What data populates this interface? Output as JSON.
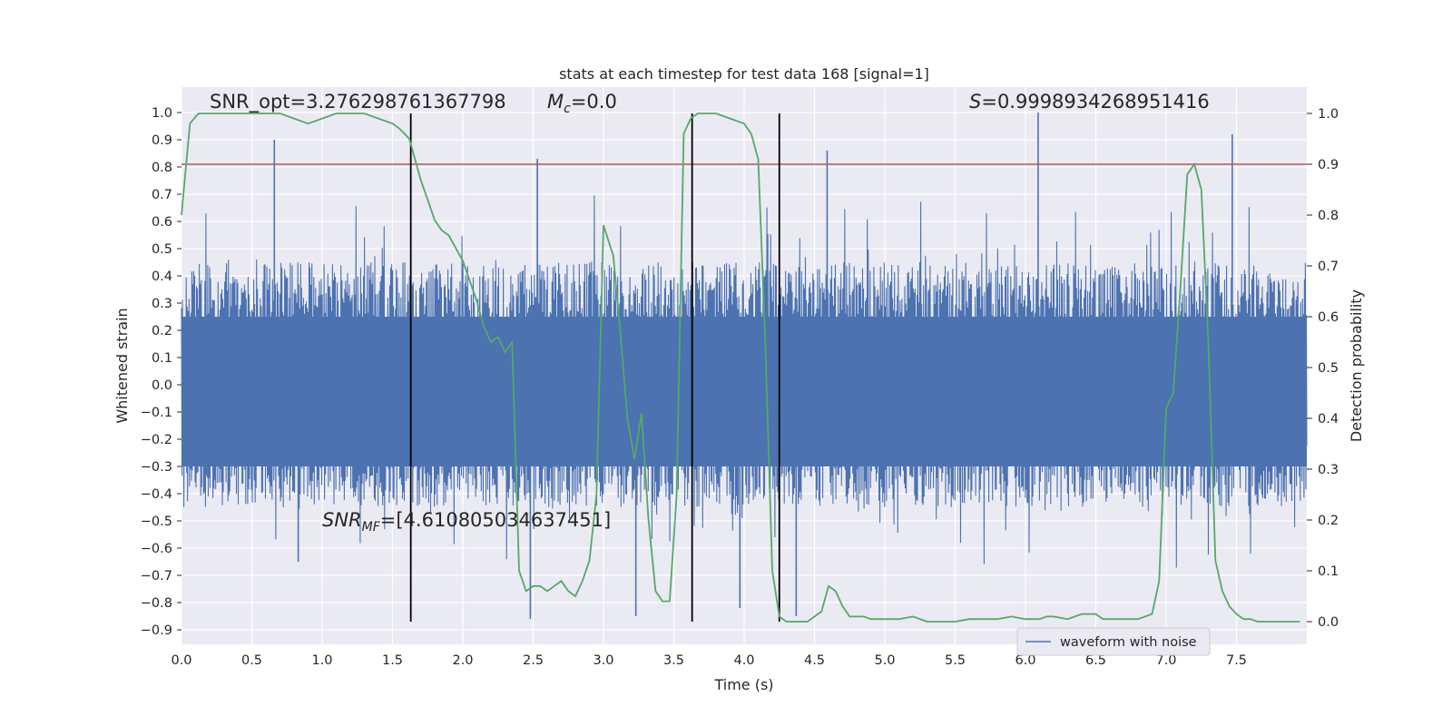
{
  "chart_data": {
    "type": "line",
    "title": "stats at each timestep for test data 168 [signal=1]",
    "xlabel": "Time (s)",
    "ylabel_left": "Whitened strain",
    "ylabel_right": "Detection probability",
    "xlim": [
      0.0,
      8.0
    ],
    "ylim_left": [
      -0.96,
      1.1
    ],
    "ylim_right": [
      -0.05,
      1.04
    ],
    "x_ticks": [
      "0.0",
      "0.5",
      "1.0",
      "1.5",
      "2.0",
      "2.5",
      "3.0",
      "3.5",
      "4.0",
      "4.5",
      "5.0",
      "5.5",
      "6.0",
      "6.5",
      "7.0",
      "7.5"
    ],
    "y_left_ticks": [
      "1.0",
      "0.9",
      "0.8",
      "0.7",
      "0.6",
      "0.5",
      "0.4",
      "0.3",
      "0.2",
      "0.1",
      "0.0",
      "−0.1",
      "−0.2",
      "−0.3",
      "−0.4",
      "−0.5",
      "−0.6",
      "−0.7",
      "−0.8",
      "−0.9"
    ],
    "y_right_ticks": [
      "1.0",
      "0.9",
      "0.8",
      "0.7",
      "0.6",
      "0.5",
      "0.4",
      "0.3",
      "0.2",
      "0.1",
      "0.0"
    ],
    "grid": true,
    "legend_position": "lower-right",
    "series": [
      {
        "name": "waveform with noise",
        "kind": "strain",
        "axis": "left",
        "color": "#4c72b0",
        "x_range": [
          0.0,
          8.0
        ],
        "typical_upper": 0.45,
        "typical_lower": -0.45,
        "peaks": [
          {
            "x": 0.66,
            "y": 0.9
          },
          {
            "x": 2.53,
            "y": 0.83
          },
          {
            "x": 4.59,
            "y": 0.86
          },
          {
            "x": 6.09,
            "y": 1.0
          },
          {
            "x": 7.47,
            "y": 0.92
          },
          {
            "x": 0.83,
            "y": -0.65
          },
          {
            "x": 2.48,
            "y": -0.86
          },
          {
            "x": 3.23,
            "y": -0.85
          },
          {
            "x": 3.97,
            "y": -0.82
          },
          {
            "x": 4.37,
            "y": -0.85
          }
        ]
      },
      {
        "kind": "probability",
        "axis": "right",
        "color": "#55a868",
        "x": [
          0.0,
          0.06,
          0.12,
          0.2,
          0.3,
          0.4,
          0.5,
          0.6,
          0.7,
          0.8,
          0.9,
          1.0,
          1.1,
          1.2,
          1.3,
          1.4,
          1.5,
          1.55,
          1.62,
          1.7,
          1.75,
          1.8,
          1.85,
          1.9,
          2.0,
          2.1,
          2.15,
          2.2,
          2.25,
          2.3,
          2.35,
          2.4,
          2.45,
          2.5,
          2.55,
          2.6,
          2.65,
          2.7,
          2.75,
          2.8,
          2.85,
          2.9,
          2.95,
          3.0,
          3.07,
          3.12,
          3.17,
          3.22,
          3.27,
          3.32,
          3.37,
          3.42,
          3.47,
          3.52,
          3.57,
          3.62,
          3.67,
          3.72,
          3.8,
          3.9,
          4.0,
          4.05,
          4.1,
          4.15,
          4.2,
          4.25,
          4.3,
          4.35,
          4.4,
          4.45,
          4.5,
          4.55,
          4.6,
          4.65,
          4.7,
          4.75,
          4.8,
          4.85,
          4.9,
          4.95,
          5.0,
          5.1,
          5.2,
          5.3,
          5.4,
          5.5,
          5.6,
          5.7,
          5.8,
          5.9,
          6.0,
          6.1,
          6.15,
          6.2,
          6.3,
          6.35,
          6.4,
          6.5,
          6.55,
          6.6,
          6.7,
          6.8,
          6.9,
          6.95,
          7.0,
          7.05,
          7.1,
          7.15,
          7.2,
          7.25,
          7.3,
          7.35,
          7.4,
          7.45,
          7.5,
          7.55,
          7.6,
          7.65,
          7.7,
          7.8,
          7.95
        ],
        "y": [
          0.8,
          0.98,
          1.0,
          1.0,
          1.0,
          1.0,
          1.0,
          1.0,
          1.0,
          0.99,
          0.98,
          0.99,
          1.0,
          1.0,
          1.0,
          0.99,
          0.98,
          0.97,
          0.95,
          0.87,
          0.83,
          0.79,
          0.77,
          0.76,
          0.71,
          0.63,
          0.58,
          0.55,
          0.56,
          0.53,
          0.55,
          0.1,
          0.06,
          0.07,
          0.07,
          0.06,
          0.07,
          0.08,
          0.06,
          0.05,
          0.08,
          0.12,
          0.25,
          0.78,
          0.72,
          0.57,
          0.4,
          0.32,
          0.41,
          0.2,
          0.06,
          0.04,
          0.04,
          0.25,
          0.96,
          0.99,
          1.0,
          1.0,
          1.0,
          0.99,
          0.98,
          0.96,
          0.91,
          0.55,
          0.1,
          0.01,
          0.0,
          0.0,
          0.0,
          0.0,
          0.01,
          0.02,
          0.07,
          0.06,
          0.03,
          0.01,
          0.01,
          0.01,
          0.005,
          0.005,
          0.005,
          0.005,
          0.01,
          0.0,
          0.0,
          0.0,
          0.005,
          0.005,
          0.005,
          0.01,
          0.005,
          0.005,
          0.01,
          0.01,
          0.005,
          0.01,
          0.015,
          0.015,
          0.005,
          0.005,
          0.005,
          0.005,
          0.015,
          0.08,
          0.42,
          0.45,
          0.65,
          0.88,
          0.9,
          0.85,
          0.55,
          0.12,
          0.06,
          0.03,
          0.015,
          0.005,
          0.005,
          0.0,
          0.0,
          0.0,
          0.0
        ]
      }
    ],
    "threshold": {
      "axis": "right",
      "y": 0.9,
      "color": "#c44e52"
    },
    "vlines": [
      1.63,
      3.63,
      4.25
    ],
    "annotations": [
      {
        "text": "SNR_opt=3.276298761367798",
        "x": 0.2,
        "y": 1.02
      },
      {
        "text": "S=0.9998934268951416",
        "x": 5.6,
        "y": 1.02
      },
      {
        "text": "=[4.610805034637451]",
        "x": 1.0,
        "y": -0.5
      }
    ],
    "mc_annotation": {
      "symbol": "M",
      "sub": "c",
      "text": "=0.0",
      "x": 2.6,
      "y": 1.02
    },
    "snr_mf_annotation": {
      "symbol": "SNR",
      "sub": "MF"
    }
  }
}
